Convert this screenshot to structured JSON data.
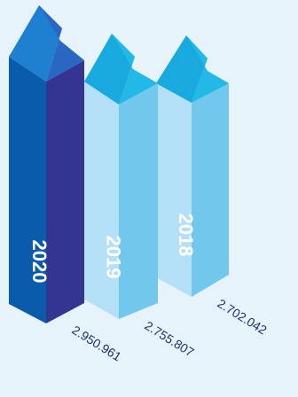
{
  "chart_data": {
    "type": "bar",
    "style": "isometric-3d-columns",
    "categories": [
      "2020",
      "2019",
      "2018"
    ],
    "values": [
      2950961,
      2755807,
      2702042
    ],
    "value_labels": [
      "2.950.961",
      "2.755.807",
      "2.702.042"
    ],
    "title": "",
    "xlabel": "",
    "ylabel": "",
    "grid": false,
    "legend": "none"
  },
  "colors": {
    "background": "#e6f3fb",
    "highlight_left": "#0a5bab",
    "highlight_right": "#343593",
    "highlight_top_left": "#1f7fd0",
    "highlight_top_right": "#2a67c4",
    "normal_left": "#b3e0f6",
    "normal_right": "#72c7ec",
    "normal_top_left": "#18a9de",
    "normal_top_right": "#22b9e6",
    "label_text": "#1d2f6b",
    "year_text": "#ffffff"
  }
}
